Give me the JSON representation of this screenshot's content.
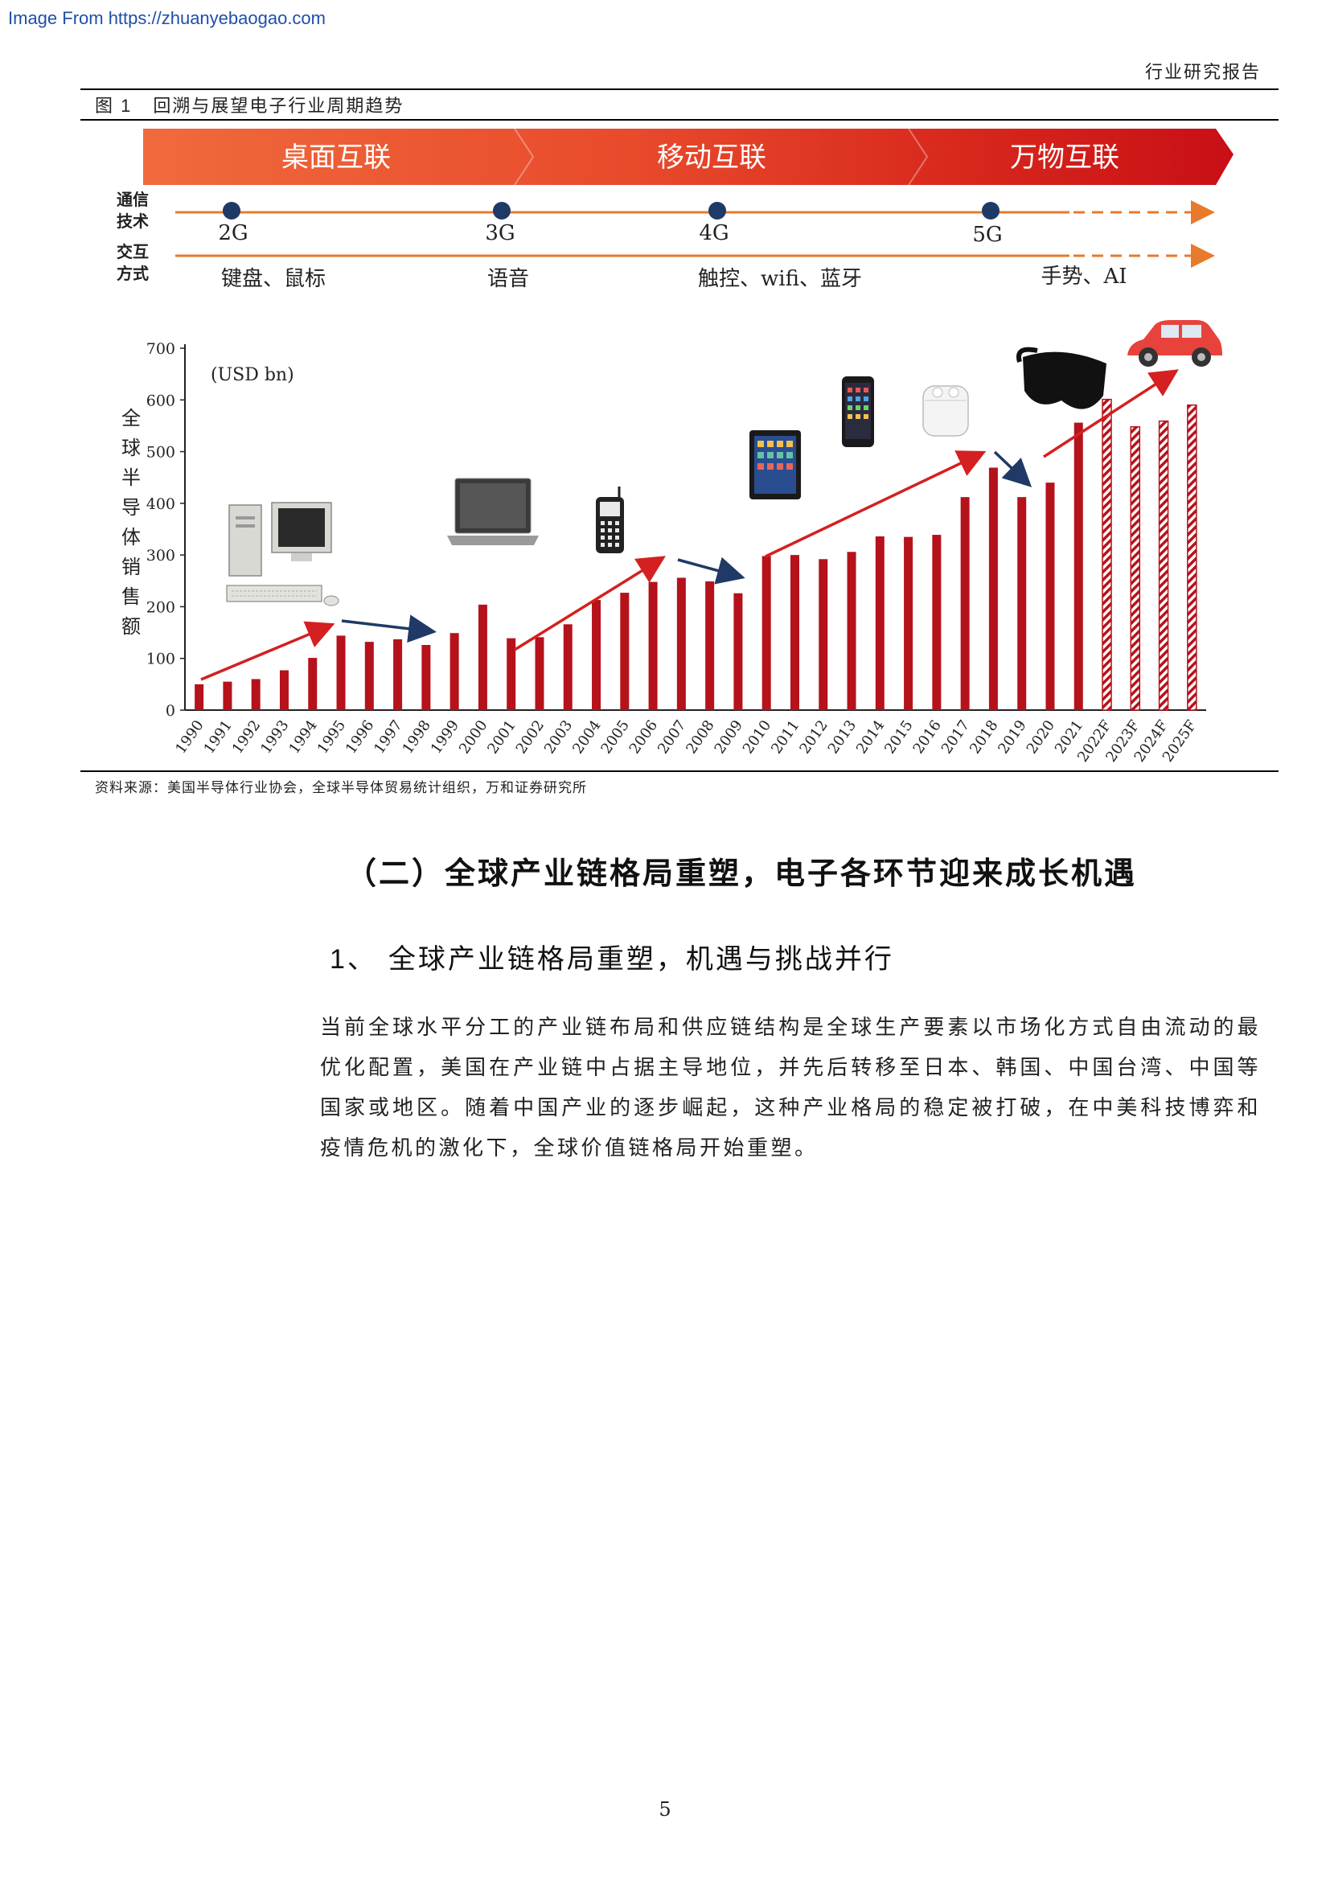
{
  "watermark": "Image From https://zhuanyebaogao.com",
  "header": {
    "report_type": "行业研究报告"
  },
  "figure": {
    "label": "图 1",
    "title": "回溯与展望电子行业周期趋势",
    "eras": [
      "桌面互联",
      "移动互联",
      "万物互联"
    ],
    "comm_label": "通信\n技术",
    "interact_label": "交互\n方式",
    "comm_techs": [
      "2G",
      "3G",
      "4G",
      "5G"
    ],
    "interactions": [
      "键盘、鼠标",
      "语音",
      "触控、wifi、蓝牙",
      "手势、AI"
    ],
    "source": "资料来源：美国半导体行业协会，全球半导体贸易统计组织，万和证券研究所"
  },
  "chart_data": {
    "type": "bar",
    "unit_label": "(USD bn)",
    "ylabel": "全球半导体销售额",
    "ylim": [
      0,
      700
    ],
    "yticks": [
      0,
      100,
      200,
      300,
      400,
      500,
      600,
      700
    ],
    "categories": [
      "1990",
      "1991",
      "1992",
      "1993",
      "1994",
      "1995",
      "1996",
      "1997",
      "1998",
      "1999",
      "2000",
      "2001",
      "2002",
      "2003",
      "2004",
      "2005",
      "2006",
      "2007",
      "2008",
      "2009",
      "2010",
      "2011",
      "2012",
      "2013",
      "2014",
      "2015",
      "2016",
      "2017",
      "2018",
      "2019",
      "2020",
      "2021",
      "2022F",
      "2023F",
      "2024F",
      "2025F"
    ],
    "values": [
      50,
      55,
      60,
      77,
      101,
      144,
      132,
      137,
      126,
      149,
      204,
      139,
      141,
      166,
      213,
      227,
      248,
      256,
      249,
      226,
      298,
      300,
      292,
      306,
      336,
      335,
      339,
      412,
      469,
      412,
      440,
      556,
      601,
      548,
      559,
      590
    ],
    "forecast_from_index": 32,
    "bar_color": "#b5121b",
    "arrow_up_color": "#d42020",
    "arrow_down_color": "#1f3a66"
  },
  "section": {
    "title": "（二）全球产业链格局重塑，电子各环节迎来成长机遇",
    "sub_num": "1、",
    "sub_title": "全球产业链格局重塑，机遇与挑战并行",
    "paragraph": "当前全球水平分工的产业链布局和供应链结构是全球生产要素以市场化方式自由流动的最优化配置，美国在产业链中占据主导地位，并先后转移至日本、韩国、中国台湾、中国等国家或地区。随着中国产业的逐步崛起，这种产业格局的稳定被打破，在中美科技博弈和疫情危机的激化下，全球价值链格局开始重塑。"
  },
  "page_number": "5"
}
